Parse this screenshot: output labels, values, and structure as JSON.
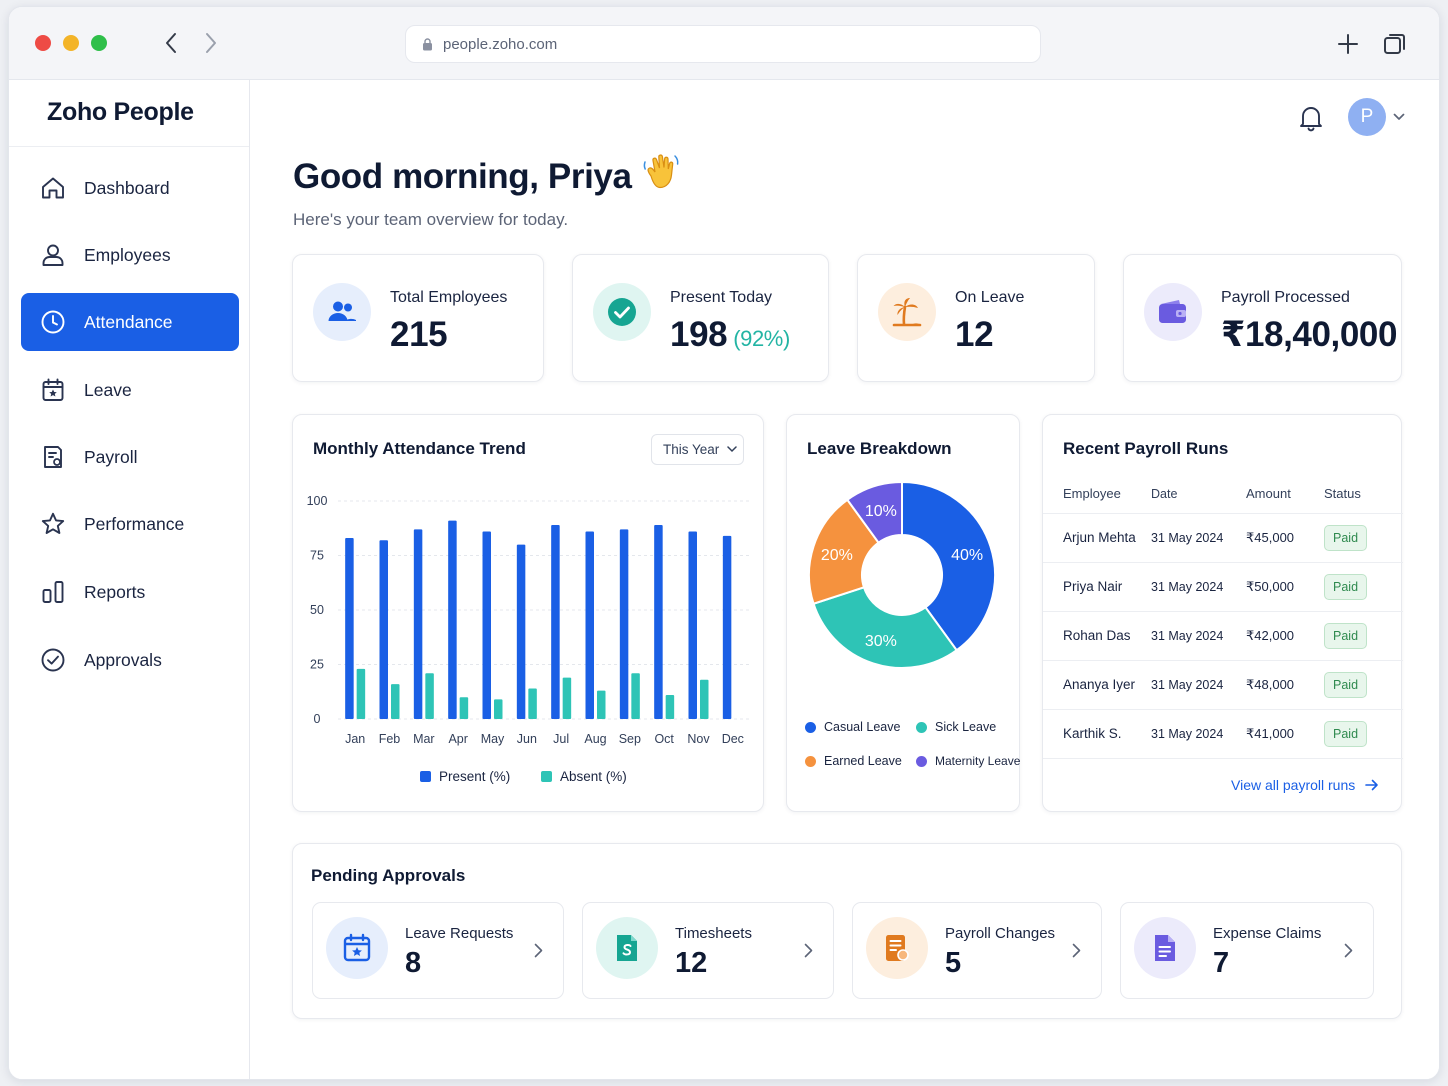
{
  "browser": {
    "url": "people.zoho.com"
  },
  "app": {
    "name": "Zoho People"
  },
  "sidebar": {
    "items": [
      {
        "label": "Dashboard",
        "icon": "home-icon"
      },
      {
        "label": "Employees",
        "icon": "user-icon"
      },
      {
        "label": "Attendance",
        "icon": "clock-icon",
        "active": true
      },
      {
        "label": "Leave",
        "icon": "calendar-icon"
      },
      {
        "label": "Payroll",
        "icon": "receipt-icon"
      },
      {
        "label": "Performance",
        "icon": "star-icon"
      },
      {
        "label": "Reports",
        "icon": "bar-chart-icon"
      },
      {
        "label": "Approvals",
        "icon": "check-circle-icon"
      }
    ]
  },
  "header": {
    "avatar_initial": "P"
  },
  "greeting": {
    "title": "Good morning, Priya",
    "emoji": "👋",
    "subtitle": "Here's your team overview for today."
  },
  "stats": [
    {
      "label": "Total Employees",
      "value": "215",
      "icon": "users-icon",
      "color": "#1a5fe5"
    },
    {
      "label": "Present Today",
      "value": "198",
      "suffix": "(92%)",
      "icon": "check-circle-icon",
      "color": "#16a592"
    },
    {
      "label": "On Leave",
      "value": "12",
      "icon": "palm-tree-icon",
      "color": "#e07a1f"
    },
    {
      "label": "Payroll Processed",
      "value": "₹18,40,000",
      "icon": "wallet-icon",
      "color": "#6a5be0"
    }
  ],
  "attendance_chart": {
    "title": "Monthly Attendance Trend",
    "filter": "This Year",
    "chart_data": {
      "type": "bar",
      "categories": [
        "Jan",
        "Feb",
        "Mar",
        "Apr",
        "May",
        "Jun",
        "Jul",
        "Aug",
        "Sep",
        "Oct",
        "Nov",
        "Dec"
      ],
      "series": [
        {
          "name": "Present (%)",
          "color": "#1a5fe5",
          "values": [
            83,
            82,
            87,
            91,
            86,
            80,
            89,
            86,
            87,
            89,
            86,
            84
          ]
        },
        {
          "name": "Absent (%)",
          "color": "#2ec4b6",
          "values": [
            23,
            16,
            21,
            10,
            9,
            14,
            19,
            13,
            21,
            11,
            18,
            0
          ]
        }
      ],
      "yticks": [
        0,
        25,
        50,
        75,
        100
      ],
      "ylim": [
        0,
        100
      ],
      "grid": true,
      "legend": "bottom"
    }
  },
  "leave_chart": {
    "title": "Leave Breakdown",
    "chart_data": {
      "type": "pie",
      "donut": true,
      "slices": [
        {
          "name": "Casual Leave",
          "value": 40,
          "label": "40%",
          "color": "#1a5fe5"
        },
        {
          "name": "Sick Leave",
          "value": 30,
          "label": "30%",
          "color": "#2ec4b6"
        },
        {
          "name": "Earned Leave",
          "value": 20,
          "label": "20%",
          "color": "#f5923e"
        },
        {
          "name": "Maternity Leave",
          "value": 10,
          "label": "10%",
          "color": "#6a5be0"
        }
      ],
      "legend": "bottom"
    }
  },
  "payroll_runs": {
    "title": "Recent Payroll Runs",
    "columns": [
      "Employee",
      "Date",
      "Amount",
      "Status"
    ],
    "rows": [
      {
        "employee": "Arjun Mehta",
        "date": "31 May 2024",
        "amount": "₹45,000",
        "status": "Paid"
      },
      {
        "employee": "Priya Nair",
        "date": "31 May 2024",
        "amount": "₹50,000",
        "status": "Paid"
      },
      {
        "employee": "Rohan Das",
        "date": "31 May 2024",
        "amount": "₹42,000",
        "status": "Paid"
      },
      {
        "employee": "Ananya Iyer",
        "date": "31 May 2024",
        "amount": "₹48,000",
        "status": "Paid"
      },
      {
        "employee": "Karthik S.",
        "date": "31 May 2024",
        "amount": "₹41,000",
        "status": "Paid"
      }
    ],
    "link": "View all payroll runs"
  },
  "approvals": {
    "title": "Pending Approvals",
    "items": [
      {
        "label": "Leave Requests",
        "count": "8",
        "icon": "calendar-star-icon",
        "color": "#1a5fe5"
      },
      {
        "label": "Timesheets",
        "count": "12",
        "icon": "timesheet-icon",
        "color": "#16a592"
      },
      {
        "label": "Payroll Changes",
        "count": "5",
        "icon": "payroll-doc-icon",
        "color": "#e07a1f"
      },
      {
        "label": "Expense Claims",
        "count": "7",
        "icon": "document-icon",
        "color": "#6a5be0"
      }
    ]
  }
}
